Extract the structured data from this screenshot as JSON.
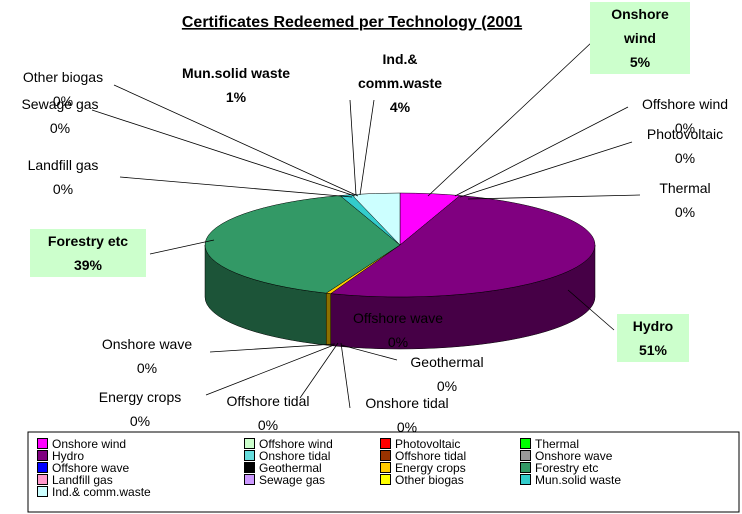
{
  "chart_data": {
    "type": "pie",
    "title": "Certificates Redeemed per Technology (2001",
    "categories": [
      "Onshore wind",
      "Offshore wind",
      "Photovoltaic",
      "Thermal",
      "Hydro",
      "Onshore tidal",
      "Offshore tidal",
      "Onshore wave",
      "Offshore wave",
      "Geothermal",
      "Energy crops",
      "Forestry etc",
      "Landfill gas",
      "Sewage gas",
      "Other biogas",
      "Mun.solid waste",
      "Ind.& comm.waste"
    ],
    "values": [
      5,
      0,
      0,
      0,
      51,
      0,
      0,
      0,
      0,
      0,
      0.4,
      39,
      0,
      0,
      0,
      1,
      4
    ],
    "value_labels": [
      "5%",
      "0%",
      "0%",
      "0%",
      "51%",
      "0%",
      "0%",
      "0%",
      "0%",
      "0%",
      "0%",
      "39%",
      "0%",
      "0%",
      "0%",
      "1%",
      "4%"
    ],
    "colors": [
      "#FF00FF",
      "#CCFFCC",
      "#FF0000",
      "#00FF00",
      "#800080",
      "#66DDDD",
      "#993300",
      "#999999",
      "#0000FF",
      "#000000",
      "#FFCC00",
      "#339966",
      "#FF99CC",
      "#CC99FF",
      "#FFFF00",
      "#33CCCC",
      "#CCFFFF"
    ],
    "legend": "bottom"
  }
}
